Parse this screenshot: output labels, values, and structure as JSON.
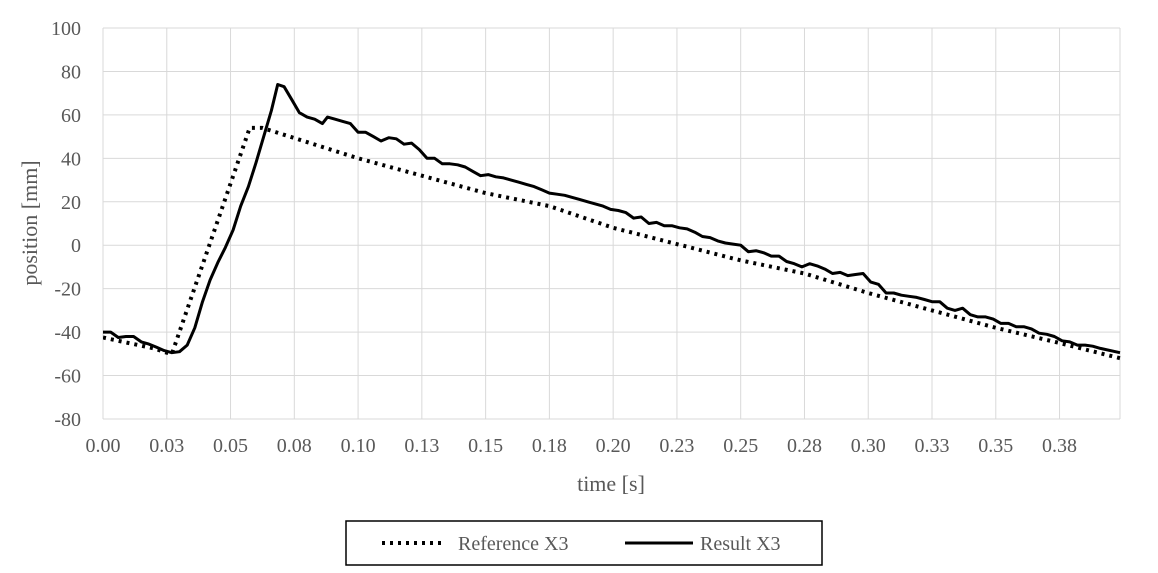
{
  "chart_data": {
    "type": "line",
    "xlabel": "time [s]",
    "ylabel": "position [mm]",
    "xlim": [
      0,
      0.3987
    ],
    "ylim": [
      -80,
      100
    ],
    "y_ticks": [
      -80,
      -60,
      -40,
      -20,
      0,
      20,
      40,
      60,
      80,
      100
    ],
    "x_ticks": [
      0,
      0.025,
      0.05,
      0.075,
      0.1,
      0.125,
      0.15,
      0.175,
      0.2,
      0.225,
      0.25,
      0.275,
      0.3,
      0.325,
      0.35,
      0.375
    ],
    "x_tick_labels": [
      "0.00",
      "0.03",
      "0.05",
      "0.08",
      "0.10",
      "0.13",
      "0.15",
      "0.18",
      "0.20",
      "0.23",
      "0.25",
      "0.28",
      "0.30",
      "0.33",
      "0.35",
      "0.38"
    ],
    "grid": true,
    "legend_position": "bottom",
    "series": [
      {
        "name": "Reference X3",
        "style": "dotted",
        "color": "#000000",
        "points": [
          [
            0,
            -42.5
          ],
          [
            0.01,
            -45
          ],
          [
            0.02,
            -47.5
          ],
          [
            0.025,
            -49.5
          ],
          [
            0.027,
            -50
          ],
          [
            0.0575,
            54
          ],
          [
            0.0625,
            54
          ],
          [
            0.1,
            40
          ],
          [
            0.15,
            24
          ],
          [
            0.175,
            18
          ],
          [
            0.2,
            8
          ],
          [
            0.25,
            -7
          ],
          [
            0.275,
            -13
          ],
          [
            0.3,
            -22
          ],
          [
            0.325,
            -30
          ],
          [
            0.35,
            -38
          ],
          [
            0.375,
            -45
          ],
          [
            0.3987,
            -52
          ]
        ]
      },
      {
        "name": "Result X3",
        "style": "solid",
        "color": "#000000",
        "points": [
          [
            0,
            -40
          ],
          [
            0.003,
            -40
          ],
          [
            0.006,
            -42.5
          ],
          [
            0.009,
            -42
          ],
          [
            0.012,
            -42
          ],
          [
            0.015,
            -44.5
          ],
          [
            0.018,
            -45.5
          ],
          [
            0.021,
            -47
          ],
          [
            0.024,
            -48.5
          ],
          [
            0.027,
            -49.5
          ],
          [
            0.03,
            -49
          ],
          [
            0.033,
            -46
          ],
          [
            0.036,
            -38
          ],
          [
            0.039,
            -26
          ],
          [
            0.042,
            -16
          ],
          [
            0.045,
            -8
          ],
          [
            0.048,
            -1
          ],
          [
            0.051,
            7
          ],
          [
            0.054,
            18
          ],
          [
            0.057,
            27
          ],
          [
            0.06,
            38
          ],
          [
            0.063,
            50
          ],
          [
            0.066,
            62
          ],
          [
            0.0685,
            74
          ],
          [
            0.071,
            73
          ],
          [
            0.074,
            67
          ],
          [
            0.077,
            61
          ],
          [
            0.08,
            59
          ],
          [
            0.083,
            58
          ],
          [
            0.086,
            56
          ],
          [
            0.088,
            59
          ],
          [
            0.091,
            58
          ],
          [
            0.094,
            57
          ],
          [
            0.097,
            56
          ],
          [
            0.1,
            52
          ],
          [
            0.103,
            52
          ],
          [
            0.106,
            50
          ],
          [
            0.109,
            48
          ],
          [
            0.112,
            49.5
          ],
          [
            0.115,
            49
          ],
          [
            0.118,
            46.5
          ],
          [
            0.121,
            47
          ],
          [
            0.124,
            44
          ],
          [
            0.127,
            40
          ],
          [
            0.13,
            40
          ],
          [
            0.133,
            37.5
          ],
          [
            0.136,
            37.5
          ],
          [
            0.139,
            37
          ],
          [
            0.142,
            36
          ],
          [
            0.145,
            34
          ],
          [
            0.148,
            32
          ],
          [
            0.151,
            32.5
          ],
          [
            0.154,
            31.5
          ],
          [
            0.157,
            31
          ],
          [
            0.16,
            30
          ],
          [
            0.163,
            29
          ],
          [
            0.166,
            28
          ],
          [
            0.169,
            27
          ],
          [
            0.172,
            25.5
          ],
          [
            0.175,
            24
          ],
          [
            0.178,
            23.5
          ],
          [
            0.181,
            23
          ],
          [
            0.184,
            22
          ],
          [
            0.187,
            21
          ],
          [
            0.19,
            20
          ],
          [
            0.193,
            19
          ],
          [
            0.196,
            18
          ],
          [
            0.199,
            16.5
          ],
          [
            0.202,
            16
          ],
          [
            0.205,
            15
          ],
          [
            0.208,
            12.5
          ],
          [
            0.211,
            13
          ],
          [
            0.214,
            10
          ],
          [
            0.217,
            10.5
          ],
          [
            0.22,
            9
          ],
          [
            0.223,
            9
          ],
          [
            0.226,
            8
          ],
          [
            0.229,
            7.5
          ],
          [
            0.232,
            6
          ],
          [
            0.235,
            4
          ],
          [
            0.238,
            3.5
          ],
          [
            0.241,
            2
          ],
          [
            0.244,
            1
          ],
          [
            0.247,
            0.5
          ],
          [
            0.25,
            0
          ],
          [
            0.253,
            -3
          ],
          [
            0.256,
            -2.5
          ],
          [
            0.259,
            -3.5
          ],
          [
            0.262,
            -5
          ],
          [
            0.265,
            -5
          ],
          [
            0.268,
            -7.5
          ],
          [
            0.271,
            -8.5
          ],
          [
            0.274,
            -10
          ],
          [
            0.277,
            -8.5
          ],
          [
            0.28,
            -9.5
          ],
          [
            0.283,
            -11
          ],
          [
            0.286,
            -13
          ],
          [
            0.289,
            -12.5
          ],
          [
            0.292,
            -14
          ],
          [
            0.295,
            -13.5
          ],
          [
            0.298,
            -13
          ],
          [
            0.301,
            -17
          ],
          [
            0.304,
            -18
          ],
          [
            0.307,
            -22
          ],
          [
            0.31,
            -22
          ],
          [
            0.313,
            -23
          ],
          [
            0.316,
            -23.5
          ],
          [
            0.319,
            -24
          ],
          [
            0.322,
            -25
          ],
          [
            0.325,
            -26
          ],
          [
            0.328,
            -26
          ],
          [
            0.331,
            -29
          ],
          [
            0.334,
            -30
          ],
          [
            0.337,
            -29
          ],
          [
            0.34,
            -32
          ],
          [
            0.343,
            -33
          ],
          [
            0.346,
            -33
          ],
          [
            0.349,
            -34
          ],
          [
            0.352,
            -36
          ],
          [
            0.355,
            -36
          ],
          [
            0.358,
            -37.5
          ],
          [
            0.361,
            -37.5
          ],
          [
            0.364,
            -38.5
          ],
          [
            0.367,
            -40.5
          ],
          [
            0.37,
            -41
          ],
          [
            0.373,
            -42
          ],
          [
            0.376,
            -44
          ],
          [
            0.379,
            -44.5
          ],
          [
            0.382,
            -46
          ],
          [
            0.385,
            -46
          ],
          [
            0.388,
            -46.5
          ],
          [
            0.391,
            -47.5
          ],
          [
            0.3987,
            -49.5
          ]
        ]
      }
    ]
  }
}
